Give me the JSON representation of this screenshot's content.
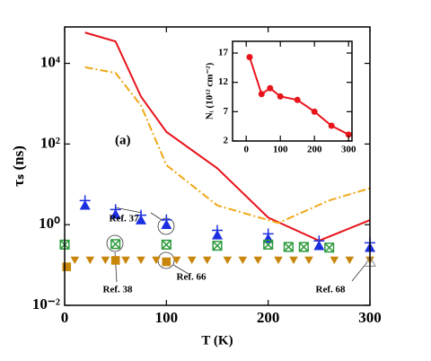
{
  "chart_data": [
    {
      "type": "line",
      "xlabel": "T (K)",
      "ylabel": "τₛ (ns)",
      "log_y": true,
      "xlim": [
        0,
        300
      ],
      "xticks": [
        0,
        100,
        200,
        300
      ],
      "ylim": [
        0.01,
        80000
      ],
      "yticks": [
        {
          "value": 0.01,
          "label": "10⁻²"
        },
        {
          "value": 1,
          "label": "10⁰"
        },
        {
          "value": 100,
          "label": "10²"
        },
        {
          "value": 10000,
          "label": "10⁴"
        }
      ],
      "annotations": [
        "(a)",
        "Ref. 37",
        "Ref. 38",
        "Ref. 66",
        "Ref. 68"
      ],
      "series": [
        {
          "style": "solid",
          "color": "#e8141c",
          "x": [
            20,
            50,
            75,
            100,
            150,
            200,
            250,
            300
          ],
          "values": [
            58000,
            35000,
            1500,
            200,
            25,
            1.5,
            0.4,
            1.3
          ]
        },
        {
          "style": "dashdot",
          "color": "#f0a818",
          "x": [
            20,
            50,
            75,
            100,
            150,
            210,
            260,
            300
          ],
          "values": [
            8000,
            5800,
            900,
            30,
            3,
            1.1,
            4,
            8
          ]
        },
        {
          "style": "triangle-plus",
          "color": "#1a2fe0",
          "x": [
            20,
            50,
            75,
            100,
            150,
            200,
            250,
            300
          ],
          "values": [
            3,
            1.8,
            1.3,
            1.0,
            0.55,
            0.45,
            0.3,
            0.27
          ]
        },
        {
          "style": "box-x",
          "color": "#2a9a3a",
          "x": [
            0,
            50,
            100,
            150,
            200,
            220,
            235,
            260
          ],
          "values": [
            0.32,
            0.33,
            0.32,
            0.3,
            0.32,
            0.28,
            0.28,
            0.27
          ]
        },
        {
          "style": "triangle-down",
          "color": "#c8860a",
          "x": [
            10,
            25,
            40,
            60,
            75,
            90,
            110,
            125,
            140,
            160,
            175,
            190,
            210,
            225,
            240,
            265,
            280,
            300
          ],
          "values": [
            0.13,
            0.13,
            0.13,
            0.13,
            0.13,
            0.13,
            0.13,
            0.13,
            0.13,
            0.13,
            0.13,
            0.13,
            0.13,
            0.13,
            0.13,
            0.13,
            0.13,
            0.13
          ]
        },
        {
          "style": "square",
          "color": "#c8860a",
          "x": [
            2,
            50,
            100
          ],
          "values": [
            0.09,
            0.13,
            0.12
          ]
        },
        {
          "style": "triangle-open",
          "color": "#888888",
          "x": [
            300
          ],
          "values": [
            0.12
          ]
        }
      ]
    },
    {
      "type": "line",
      "ylabel": "Nᵢ (10¹² cm⁻²)",
      "xlim": [
        -40,
        310
      ],
      "xticks": [
        0,
        100,
        200,
        300
      ],
      "ylim": [
        2,
        19
      ],
      "yticks": [
        2,
        7,
        12,
        17
      ],
      "series": [
        {
          "style": "solid-dot",
          "color": "#e8141c",
          "x": [
            10,
            45,
            70,
            100,
            150,
            200,
            250,
            300
          ],
          "values": [
            16.3,
            10.0,
            11.0,
            9.6,
            9.0,
            7.0,
            4.6,
            3.1
          ]
        }
      ]
    }
  ]
}
